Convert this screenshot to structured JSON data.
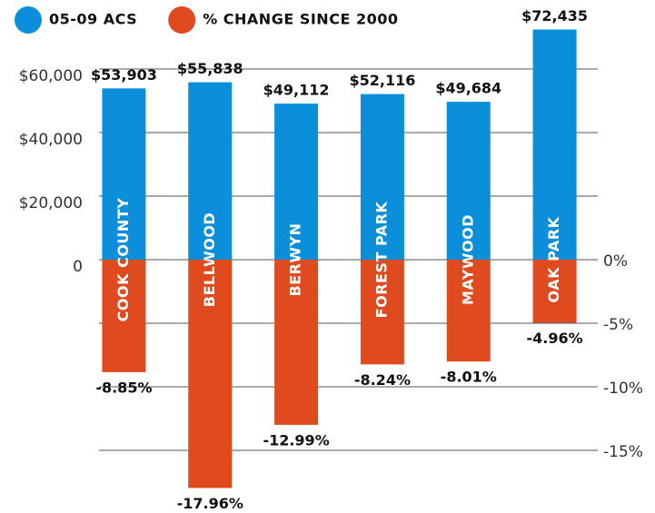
{
  "chart_data": {
    "type": "bar",
    "categories": [
      "COOK COUNTY",
      "BELLWOOD",
      "BERWYN",
      "FOREST PARK",
      "MAYWOOD",
      "OAK PARK"
    ],
    "series": [
      {
        "name": "05-09 ACS",
        "color": "#0b8fdb",
        "values": [
          53903,
          55838,
          49112,
          52116,
          49684,
          72435
        ],
        "value_labels": [
          "$53,903",
          "$55,838",
          "$49,112",
          "$52,116",
          "$49,684",
          "$72,435"
        ]
      },
      {
        "name": "% CHANGE SINCE 2000",
        "color": "#e04a1f",
        "axis": "y2",
        "values": [
          -8.85,
          -17.96,
          -12.99,
          -8.24,
          -8.01,
          -4.96
        ],
        "value_labels": [
          "-8.85%",
          "-17.96%",
          "-12.99%",
          "-8.24%",
          "-8.01%",
          "-4.96%"
        ]
      }
    ],
    "ylim": [
      -75000,
      75000
    ],
    "yticks": [
      {
        "value": 0,
        "label": "0"
      },
      {
        "value": 20000,
        "label": "$20,000"
      },
      {
        "value": 40000,
        "label": "$40,000"
      },
      {
        "value": 60000,
        "label": "$60,000"
      }
    ],
    "y2lim": [
      -18.75,
      18.75
    ],
    "y2ticks": [
      {
        "value": 0,
        "label": "0%"
      },
      {
        "value": -5,
        "label": "-5%"
      },
      {
        "value": -10,
        "label": "-10%"
      },
      {
        "value": -15,
        "label": "-15%"
      }
    ],
    "grid": true
  }
}
